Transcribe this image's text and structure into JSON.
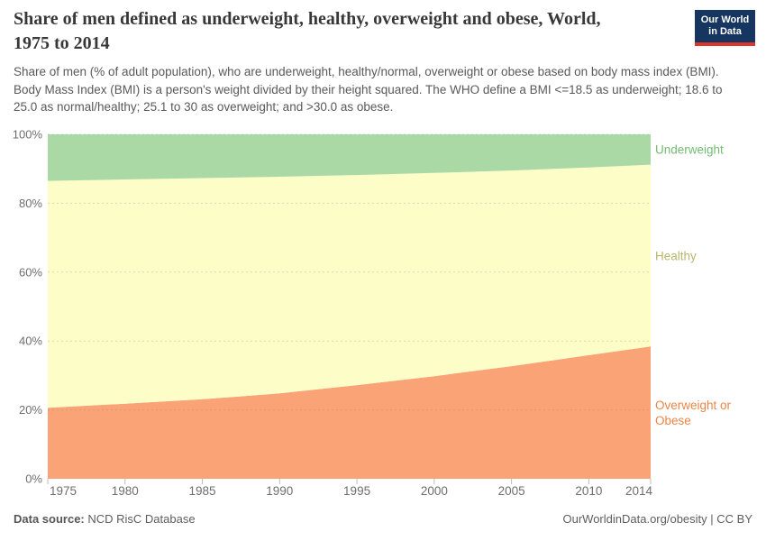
{
  "header": {
    "title": "Share of men defined as underweight, healthy, overweight and obese, World, 1975 to 2014",
    "subtitle": "Share of men (% of adult population), who are underweight, healthy/normal, overweight or obese based on body mass index (BMI). Body Mass Index (BMI) is a person's weight divided by their height squared. The WHO define a BMI <=18.5 as underweight; 18.6 to 25.0 as normal/healthy; 25.1 to 30 as overweight; and >30.0 as obese.",
    "logo": {
      "line1": "Our World",
      "line2": "in Data",
      "bg_color": "#163560",
      "bar_color": "#DC352C"
    }
  },
  "chart_data": {
    "type": "area",
    "stacked": true,
    "x": [
      1975,
      1980,
      1985,
      1990,
      1995,
      2000,
      2005,
      2010,
      2014
    ],
    "series": [
      {
        "name": "Overweight or Obese",
        "color": "#FAA376",
        "label_color": "#ED8546",
        "values": [
          20.6,
          21.8,
          23.1,
          24.8,
          27.2,
          29.8,
          32.7,
          35.9,
          38.4
        ]
      },
      {
        "name": "Healthy",
        "color": "#FDFDC7",
        "label_color": "#B7B76E",
        "values": [
          65.9,
          65.1,
          64.2,
          62.9,
          61.0,
          59.0,
          56.8,
          54.5,
          52.8
        ]
      },
      {
        "name": "Underweight",
        "color": "#ABD9A5",
        "label_color": "#74BB74",
        "values": [
          13.5,
          13.1,
          12.7,
          12.3,
          11.8,
          11.2,
          10.5,
          9.6,
          8.8
        ]
      }
    ],
    "ylim": [
      0,
      100
    ],
    "yticks": [
      0,
      20,
      40,
      60,
      80,
      100
    ],
    "ytick_suffix": "%",
    "xticks": [
      1975,
      1980,
      1985,
      1990,
      1995,
      2000,
      2005,
      2010,
      2014
    ],
    "grid": "dashed-horizontal",
    "legend_position": "right-of-plot"
  },
  "footer": {
    "source_label": "Data source:",
    "source_value": " NCD RisC Database",
    "credit": "OurWorldinData.org/obesity | CC BY"
  }
}
